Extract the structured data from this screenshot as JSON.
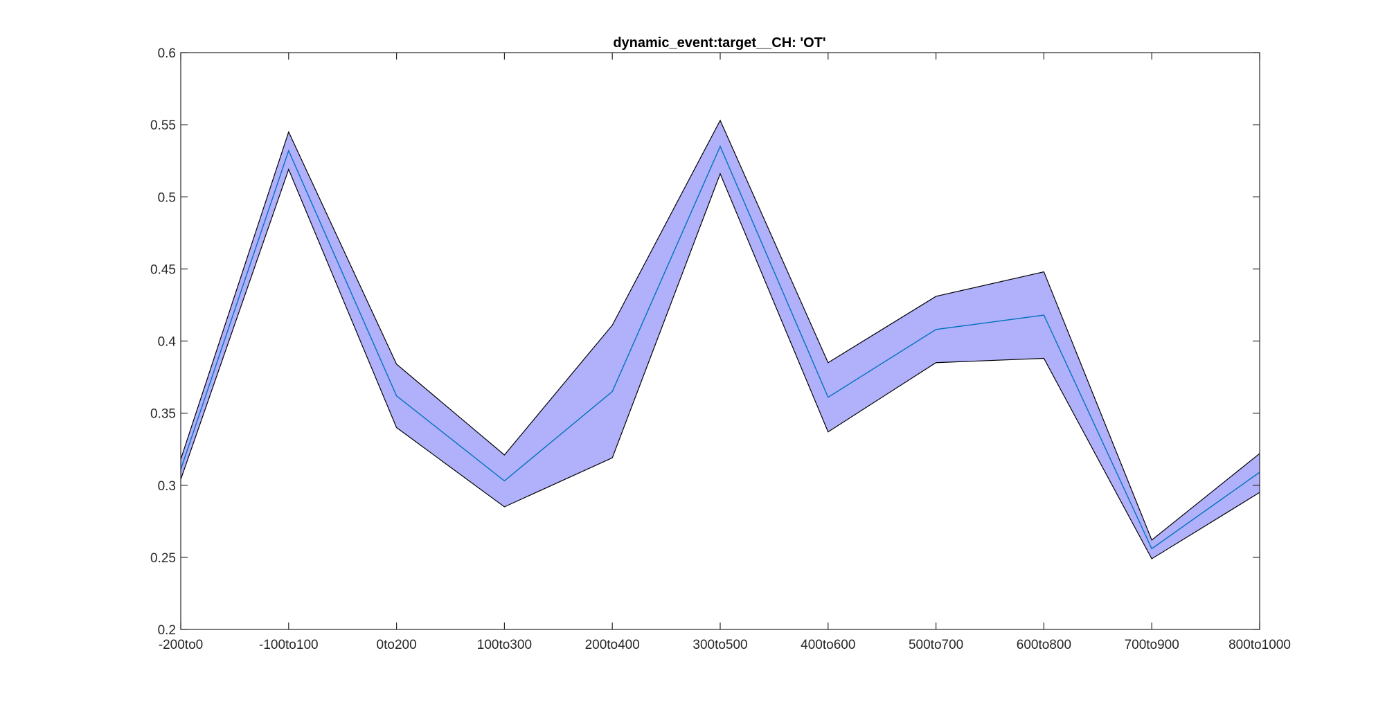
{
  "chart_data": {
    "type": "line",
    "title": "dynamic_event:target__CH: 'OT'",
    "xlabel": "",
    "ylabel": "",
    "categories": [
      "-200to0",
      "-100to100",
      "0to200",
      "100to300",
      "200to400",
      "300to500",
      "400to600",
      "500to700",
      "600to800",
      "700to900",
      "800to1000"
    ],
    "ylim": [
      0.2,
      0.6
    ],
    "yticks": [
      "0.2",
      "0.25",
      "0.3",
      "0.35",
      "0.4",
      "0.45",
      "0.5",
      "0.55",
      "0.6"
    ],
    "series": [
      {
        "values": [
          0.311,
          0.532,
          0.362,
          0.303,
          0.365,
          0.535,
          0.361,
          0.408,
          0.418,
          0.256,
          0.309
        ],
        "upper": [
          0.318,
          0.545,
          0.384,
          0.321,
          0.411,
          0.553,
          0.385,
          0.431,
          0.448,
          0.262,
          0.322
        ],
        "lower": [
          0.304,
          0.519,
          0.34,
          0.285,
          0.319,
          0.516,
          0.337,
          0.385,
          0.388,
          0.249,
          0.295
        ]
      }
    ],
    "grid": false,
    "legend": "none",
    "colors": {
      "line": "#0072BD",
      "band_fill": "#B0B0FB",
      "band_edge": "#000000",
      "axes": "#262626"
    }
  }
}
